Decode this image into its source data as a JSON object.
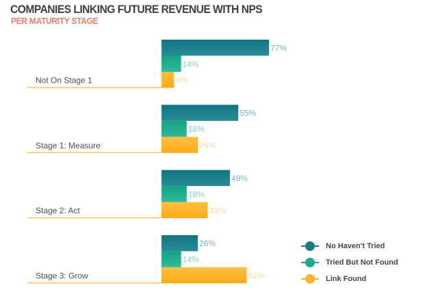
{
  "chart_data": {
    "type": "bar",
    "orientation": "horizontal",
    "title": "COMPANIES LINKING FUTURE REVENUE WITH NPS",
    "subtitle": "PER MATURITY STAGE",
    "categories": [
      "Not On Stage 1",
      "Stage 1: Measure",
      "Stage 2: Act",
      "Stage 3: Grow"
    ],
    "series": [
      {
        "name": "No Haven't Tried",
        "color": "#1b7b8a",
        "values": [
          77,
          55,
          49,
          26
        ],
        "labels": [
          "77%",
          "55%",
          "49%",
          "26%"
        ]
      },
      {
        "name": "Tried But Not Found",
        "color": "#1aab8c",
        "values": [
          14,
          18,
          18,
          14
        ],
        "labels": [
          "14%",
          "18%",
          "18%",
          "14%"
        ]
      },
      {
        "name": "Link Found",
        "color": "#fdb42b",
        "values": [
          9,
          26,
          33,
          61
        ],
        "labels": [
          "9%",
          "26%",
          "33%",
          "61%"
        ]
      }
    ],
    "label_colors": [
      "#7fb3c4",
      "#86d2c3",
      "#ffd99a"
    ],
    "xlim": [
      0,
      100
    ],
    "grid": false,
    "legend_position": "bottom-right"
  }
}
